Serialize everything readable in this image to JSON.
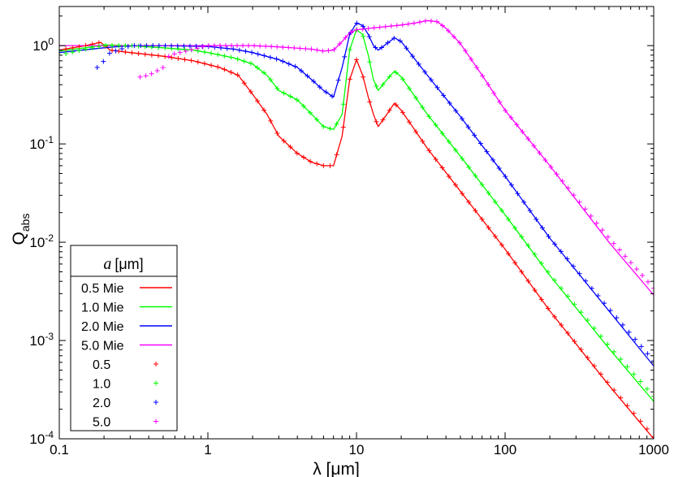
{
  "chart_data": {
    "type": "line",
    "title": "",
    "xlabel": "λ [μm]",
    "ylabel_main": "Q",
    "ylabel_sub": "abs",
    "xscale": "log",
    "yscale": "log",
    "xlim": [
      0.1,
      1000
    ],
    "ylim": [
      0.0001,
      2.5
    ],
    "x_ticks": [
      {
        "value": 0.1,
        "label": "0.1"
      },
      {
        "value": 1,
        "label": "1"
      },
      {
        "value": 10,
        "label": "10"
      },
      {
        "value": 100,
        "label": "100"
      },
      {
        "value": 1000,
        "label": "1000"
      }
    ],
    "y_ticks": [
      {
        "value": 0.0001,
        "base": "10",
        "exp": "-4"
      },
      {
        "value": 0.001,
        "base": "10",
        "exp": "-3"
      },
      {
        "value": 0.01,
        "base": "10",
        "exp": "-2"
      },
      {
        "value": 0.1,
        "base": "10",
        "exp": "-1"
      },
      {
        "value": 1,
        "base": "10",
        "exp": "0"
      }
    ],
    "grid": false,
    "legend": {
      "placement": "bottom-left",
      "title_var": "a",
      "title_unit": "[μm]"
    },
    "series": [
      {
        "name": "0.5 Mie",
        "style": "line",
        "color": "#ff0000",
        "x": [
          0.1,
          0.15,
          0.19,
          0.22,
          0.3,
          0.5,
          0.8,
          1.2,
          1.6,
          2.0,
          2.5,
          3.0,
          4.0,
          5.0,
          6.0,
          7.0,
          8.0,
          9.0,
          10.0,
          11.0,
          12.0,
          13.0,
          14.0,
          16.0,
          18.0,
          20.0,
          30.0,
          50.0,
          100.0,
          200.0,
          500.0,
          1000.0
        ],
        "y": [
          0.9,
          1.0,
          1.08,
          0.9,
          0.85,
          0.78,
          0.7,
          0.6,
          0.5,
          0.32,
          0.2,
          0.12,
          0.08,
          0.065,
          0.06,
          0.06,
          0.12,
          0.45,
          0.72,
          0.5,
          0.3,
          0.2,
          0.15,
          0.2,
          0.26,
          0.22,
          0.09,
          0.033,
          0.0085,
          0.002,
          0.00035,
          0.0001
        ]
      },
      {
        "name": "1.0 Mie",
        "style": "line",
        "color": "#00ff00",
        "x": [
          0.1,
          0.15,
          0.2,
          0.3,
          0.5,
          0.8,
          1.0,
          1.5,
          2.0,
          2.5,
          3.0,
          4.0,
          5.0,
          6.0,
          7.0,
          8.0,
          9.0,
          10.0,
          11.0,
          12.0,
          13.0,
          14.0,
          16.0,
          18.0,
          20.0,
          30.0,
          50.0,
          100.0,
          200.0,
          500.0,
          1000.0
        ],
        "y": [
          0.88,
          0.95,
          1.02,
          1.0,
          0.95,
          0.9,
          0.85,
          0.75,
          0.65,
          0.5,
          0.35,
          0.28,
          0.2,
          0.15,
          0.14,
          0.2,
          0.9,
          1.45,
          1.3,
          0.8,
          0.45,
          0.35,
          0.45,
          0.55,
          0.48,
          0.2,
          0.075,
          0.019,
          0.0046,
          0.00083,
          0.00024
        ]
      },
      {
        "name": "2.0 Mie",
        "style": "line",
        "color": "#0000ff",
        "x": [
          0.1,
          0.2,
          0.3,
          0.5,
          1.0,
          1.5,
          2.0,
          3.0,
          4.0,
          5.0,
          6.0,
          7.0,
          8.0,
          9.0,
          10.0,
          11.0,
          12.0,
          13.0,
          14.0,
          16.0,
          18.0,
          20.0,
          30.0,
          50.0,
          100.0,
          200.0,
          500.0,
          1000.0
        ],
        "y": [
          0.85,
          0.95,
          1.0,
          1.0,
          0.98,
          0.92,
          0.85,
          0.72,
          0.6,
          0.45,
          0.35,
          0.3,
          0.6,
          1.3,
          1.7,
          1.6,
          1.3,
          1.0,
          0.9,
          1.05,
          1.2,
          1.1,
          0.5,
          0.19,
          0.047,
          0.011,
          0.002,
          0.00055
        ]
      },
      {
        "name": "5.0 Mie",
        "style": "line",
        "color": "#ff00ff",
        "x": [
          0.1,
          0.2,
          0.5,
          1.0,
          2.0,
          3.0,
          5.0,
          6.0,
          7.0,
          8.0,
          9.0,
          10.0,
          15.0,
          20.0,
          25.0,
          30.0,
          35.0,
          40.0,
          50.0,
          70.0,
          100.0,
          200.0,
          500.0,
          1000.0
        ],
        "y": [
          1.0,
          1.0,
          1.0,
          1.0,
          1.0,
          0.97,
          0.92,
          0.88,
          0.9,
          1.1,
          1.35,
          1.45,
          1.55,
          1.62,
          1.7,
          1.8,
          1.75,
          1.5,
          1.05,
          0.5,
          0.22,
          0.06,
          0.01,
          0.0029
        ]
      },
      {
        "name": "0.5",
        "style": "points",
        "color": "#ff0000",
        "x": [
          0.1,
          0.15,
          0.19,
          0.22,
          0.3,
          0.5,
          0.8,
          1.2,
          1.6,
          2.0,
          2.5,
          3.0,
          4.0,
          5.0,
          6.0,
          7.0,
          8.0,
          9.0,
          10.0,
          11.0,
          12.0,
          13.0,
          14.0,
          16.0,
          18.0,
          20.0,
          30.0,
          50.0,
          100.0,
          200.0,
          500.0,
          1000.0
        ],
        "y": [
          0.9,
          1.0,
          1.08,
          0.9,
          0.85,
          0.78,
          0.7,
          0.6,
          0.5,
          0.32,
          0.2,
          0.12,
          0.08,
          0.065,
          0.06,
          0.06,
          0.12,
          0.45,
          0.72,
          0.5,
          0.3,
          0.2,
          0.15,
          0.2,
          0.26,
          0.22,
          0.09,
          0.033,
          0.0085,
          0.002,
          0.00036,
          0.000105
        ]
      },
      {
        "name": "1.0",
        "style": "points",
        "color": "#00ff00",
        "x": [
          0.1,
          0.15,
          0.2,
          0.3,
          0.5,
          0.8,
          1.0,
          1.5,
          2.0,
          2.5,
          3.0,
          4.0,
          5.0,
          6.0,
          7.0,
          8.0,
          9.0,
          10.0,
          11.0,
          12.0,
          13.0,
          14.0,
          16.0,
          18.0,
          20.0,
          30.0,
          50.0,
          100.0,
          200.0,
          500.0,
          1000.0
        ],
        "y": [
          0.8,
          0.92,
          1.0,
          1.0,
          0.95,
          0.9,
          0.85,
          0.75,
          0.65,
          0.5,
          0.35,
          0.28,
          0.2,
          0.15,
          0.14,
          0.2,
          0.9,
          1.45,
          1.3,
          0.8,
          0.45,
          0.35,
          0.45,
          0.55,
          0.48,
          0.2,
          0.075,
          0.019,
          0.0047,
          0.00088,
          0.00027
        ]
      },
      {
        "name": "2.0",
        "style": "points",
        "color": "#0000ff",
        "x": [
          0.18,
          0.2,
          0.22,
          0.25,
          0.3,
          0.5,
          1.0,
          1.5,
          2.0,
          3.0,
          4.0,
          5.0,
          6.0,
          7.0,
          8.0,
          9.0,
          10.0,
          11.0,
          12.0,
          13.0,
          14.0,
          16.0,
          18.0,
          20.0,
          30.0,
          50.0,
          100.0,
          200.0,
          500.0,
          1000.0
        ],
        "y": [
          0.6,
          0.7,
          0.85,
          0.9,
          1.0,
          1.0,
          0.98,
          0.92,
          0.85,
          0.72,
          0.6,
          0.45,
          0.35,
          0.3,
          0.6,
          1.3,
          1.7,
          1.6,
          1.3,
          1.0,
          0.9,
          1.05,
          1.2,
          1.1,
          0.5,
          0.19,
          0.047,
          0.011,
          0.0021,
          0.00062
        ]
      },
      {
        "name": "5.0",
        "style": "points",
        "color": "#ff00ff",
        "x": [
          0.35,
          0.4,
          0.45,
          0.5,
          0.55,
          1.0,
          2.0,
          3.0,
          5.0,
          6.0,
          7.0,
          8.0,
          9.0,
          10.0,
          15.0,
          20.0,
          25.0,
          30.0,
          35.0,
          40.0,
          50.0,
          70.0,
          100.0,
          200.0,
          500.0,
          1000.0
        ],
        "y": [
          0.48,
          0.5,
          0.55,
          0.6,
          0.8,
          1.0,
          1.0,
          0.97,
          0.92,
          0.88,
          0.9,
          1.1,
          1.35,
          1.45,
          1.55,
          1.62,
          1.7,
          1.8,
          1.75,
          1.5,
          1.05,
          0.5,
          0.22,
          0.06,
          0.011,
          0.0034
        ]
      }
    ]
  }
}
